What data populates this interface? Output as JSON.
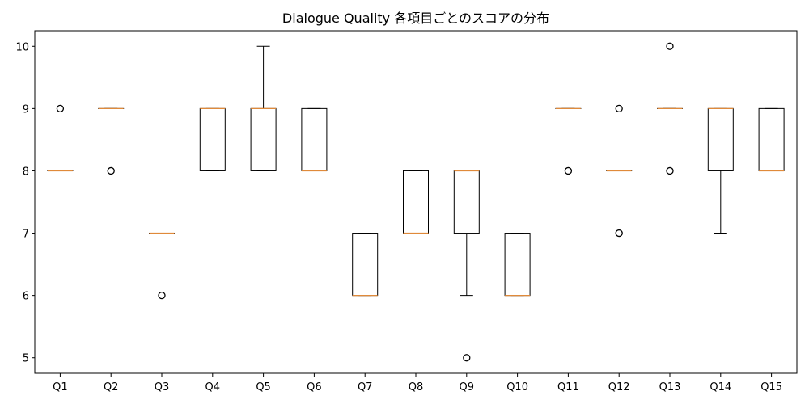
{
  "chart_data": {
    "type": "box",
    "title": "Dialogue Quality 各項目ごとのスコアの分布",
    "xlabel": "",
    "ylabel": "",
    "ylim": [
      4.75,
      10.25
    ],
    "yticks": [
      "5",
      "6",
      "7",
      "8",
      "9",
      "10"
    ],
    "grid": false,
    "colors": {
      "box": "#000000",
      "median": "#e08a3a",
      "flier": "#000000"
    },
    "categories": [
      "Q1",
      "Q2",
      "Q3",
      "Q4",
      "Q5",
      "Q6",
      "Q7",
      "Q8",
      "Q9",
      "Q10",
      "Q11",
      "Q12",
      "Q13",
      "Q14",
      "Q15"
    ],
    "boxes": [
      {
        "q1": 8,
        "median": 8,
        "q3": 8,
        "whisker_low": 8,
        "whisker_high": 8,
        "outliers": [
          9
        ]
      },
      {
        "q1": 9,
        "median": 9,
        "q3": 9,
        "whisker_low": 9,
        "whisker_high": 9,
        "outliers": [
          8
        ]
      },
      {
        "q1": 7,
        "median": 7,
        "q3": 7,
        "whisker_low": 7,
        "whisker_high": 7,
        "outliers": [
          6
        ]
      },
      {
        "q1": 8,
        "median": 9,
        "q3": 9,
        "whisker_low": 8,
        "whisker_high": 9,
        "outliers": []
      },
      {
        "q1": 8,
        "median": 9,
        "q3": 9,
        "whisker_low": 8,
        "whisker_high": 10,
        "outliers": []
      },
      {
        "q1": 8,
        "median": 8,
        "q3": 9,
        "whisker_low": 8,
        "whisker_high": 9,
        "outliers": []
      },
      {
        "q1": 6,
        "median": 6,
        "q3": 7,
        "whisker_low": 6,
        "whisker_high": 7,
        "outliers": []
      },
      {
        "q1": 7,
        "median": 7,
        "q3": 8,
        "whisker_low": 7,
        "whisker_high": 8,
        "outliers": []
      },
      {
        "q1": 7,
        "median": 8,
        "q3": 8,
        "whisker_low": 6,
        "whisker_high": 8,
        "outliers": [
          5
        ]
      },
      {
        "q1": 6,
        "median": 6,
        "q3": 7,
        "whisker_low": 6,
        "whisker_high": 7,
        "outliers": []
      },
      {
        "q1": 9,
        "median": 9,
        "q3": 9,
        "whisker_low": 9,
        "whisker_high": 9,
        "outliers": [
          8
        ]
      },
      {
        "q1": 8,
        "median": 8,
        "q3": 8,
        "whisker_low": 8,
        "whisker_high": 8,
        "outliers": [
          7,
          9
        ]
      },
      {
        "q1": 9,
        "median": 9,
        "q3": 9,
        "whisker_low": 9,
        "whisker_high": 9,
        "outliers": [
          8,
          10
        ]
      },
      {
        "q1": 8,
        "median": 9,
        "q3": 9,
        "whisker_low": 7,
        "whisker_high": 9,
        "outliers": []
      },
      {
        "q1": 8,
        "median": 8,
        "q3": 9,
        "whisker_low": 8,
        "whisker_high": 9,
        "outliers": []
      }
    ]
  }
}
